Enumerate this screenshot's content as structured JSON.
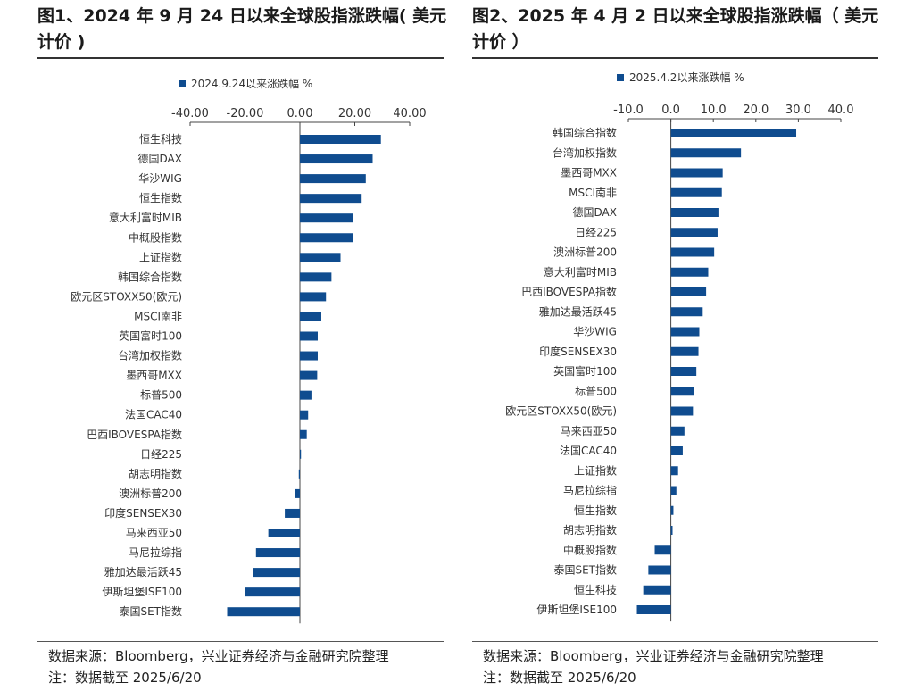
{
  "colors": {
    "bar": "#0f4c8f",
    "axis": "#444444"
  },
  "figure_left": {
    "title": "图1、2024 年 9 月 24 日以来全球股指涨跌幅( 美元计价 )",
    "source": "数据来源：Bloomberg，兴业证券经济与金融研究院整理",
    "note": "注：数据截至 2025/6/20"
  },
  "figure_right": {
    "title": "图2、2025 年 4 月 2 日以来全球股指涨跌幅（ 美元计价 ）",
    "source": "数据来源：Bloomberg，兴业证券经济与金融研究院整理",
    "note": "注：数据截至 2025/6/20"
  },
  "chart_data": [
    {
      "type": "bar",
      "orientation": "horizontal",
      "legend": "2024.9.24以来涨跌幅 %",
      "legend_position": "top",
      "xlim": [
        -40,
        40
      ],
      "ticks": [
        -40,
        -20,
        0,
        20,
        40
      ],
      "tick_labels": [
        "-40.00",
        "-20.00",
        "0.00",
        "20.00",
        "40.00"
      ],
      "grid": false,
      "categories": [
        "恒生科技",
        "德国DAX",
        "华沙WIG",
        "恒生指数",
        "意大利富时MIB",
        "中概股指数",
        "上证指数",
        "韩国综合指数",
        "欧元区STOXX50(欧元)",
        "MSCI南非",
        "英国富时100",
        "台湾加权指数",
        "墨西哥MXX",
        "标普500",
        "法国CAC40",
        "巴西IBOVESPA指数",
        "日经225",
        "胡志明指数",
        "澳洲标普200",
        "印度SENSEX30",
        "马来西亚50",
        "马尼拉综指",
        "雅加达最活跃45",
        "伊斯坦堡ISE100",
        "泰国SET指数"
      ],
      "values": [
        29.5,
        26.5,
        24.0,
        22.5,
        19.5,
        19.3,
        14.8,
        11.5,
        9.5,
        7.8,
        6.5,
        6.5,
        6.3,
        4.2,
        3.0,
        2.5,
        0.4,
        -0.4,
        -1.8,
        -5.5,
        -11.5,
        -16.0,
        -17.0,
        -20.0,
        -26.5
      ]
    },
    {
      "type": "bar",
      "orientation": "horizontal",
      "legend": "2025.4.2以来涨跌幅 %",
      "legend_position": "top",
      "xlim": [
        -10,
        40
      ],
      "ticks": [
        -10,
        0,
        10,
        20,
        30,
        40
      ],
      "tick_labels": [
        "-10.0",
        "0.0",
        "10.0",
        "20.0",
        "30.0",
        "40.0"
      ],
      "grid": false,
      "categories": [
        "韩国综合指数",
        "台湾加权指数",
        "墨西哥MXX",
        "MSCI南非",
        "德国DAX",
        "日经225",
        "澳洲标普200",
        "意大利富时MIB",
        "巴西IBOVESPA指数",
        "雅加达最活跃45",
        "华沙WIG",
        "印度SENSEX30",
        "英国富时100",
        "标普500",
        "欧元区STOXX50(欧元)",
        "马来西亚50",
        "法国CAC40",
        "上证指数",
        "马尼拉综指",
        "恒生指数",
        "胡志明指数",
        "中概股指数",
        "泰国SET指数",
        "恒生科技",
        "伊斯坦堡ISE100"
      ],
      "values": [
        29.5,
        16.5,
        12.2,
        12.0,
        11.2,
        11.0,
        10.2,
        8.8,
        8.3,
        7.5,
        6.7,
        6.5,
        6.0,
        5.5,
        5.2,
        3.2,
        2.8,
        1.7,
        1.3,
        0.6,
        0.4,
        -3.8,
        -5.3,
        -6.5,
        -8.0
      ]
    }
  ]
}
